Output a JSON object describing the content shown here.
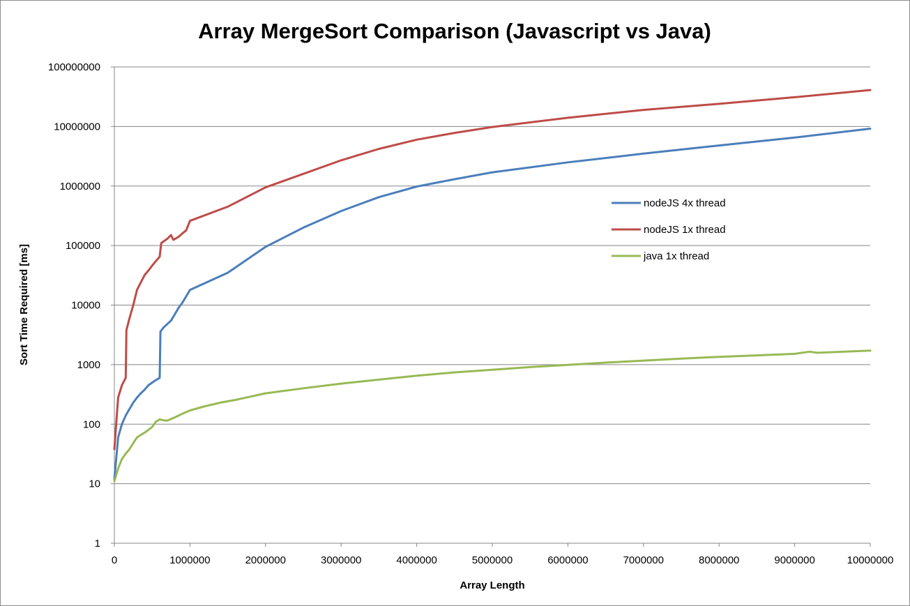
{
  "chart_data": {
    "type": "line",
    "title": "Array MergeSort Comparison (Javascript vs Java)",
    "xlabel": "Array Length",
    "ylabel": "Sort Time Required [ms]",
    "y_scale": "log",
    "xlim": [
      0,
      10000000
    ],
    "ylim": [
      1,
      100000000
    ],
    "grid": "horizontal",
    "legend_position": "right",
    "x_tick_labels": [
      "0",
      "1000000",
      "2000000",
      "3000000",
      "4000000",
      "5000000",
      "6000000",
      "7000000",
      "8000000",
      "9000000",
      "10000000"
    ],
    "y_tick_labels": [
      "1",
      "10",
      "100",
      "1000",
      "10000",
      "100000",
      "1000000",
      "10000000",
      "100000000"
    ],
    "series": [
      {
        "name": "nodeJS 4x thread",
        "color": "#4a7ebb",
        "x": [
          0,
          50000,
          100000,
          150000,
          200000,
          250000,
          300000,
          350000,
          400000,
          450000,
          500000,
          550000,
          600000,
          610000,
          650000,
          700000,
          750000,
          800000,
          850000,
          900000,
          950000,
          1000000,
          1500000,
          2000000,
          2500000,
          3000000,
          3500000,
          4000000,
          4500000,
          5000000,
          6000000,
          7000000,
          8000000,
          9000000,
          10000000
        ],
        "y": [
          12,
          60,
          100,
          140,
          180,
          230,
          280,
          330,
          380,
          450,
          500,
          550,
          600,
          3600,
          4200,
          4800,
          5500,
          7000,
          9000,
          11000,
          14000,
          18000,
          35000,
          95000,
          200000,
          380000,
          650000,
          980000,
          1300000,
          1700000,
          2500000,
          3500000,
          4800000,
          6500000,
          9200000
        ]
      },
      {
        "name": "nodeJS 1x thread",
        "color": "#be4b48",
        "x": [
          0,
          50000,
          100000,
          150000,
          160000,
          200000,
          250000,
          300000,
          350000,
          400000,
          450000,
          500000,
          550000,
          600000,
          620000,
          700000,
          750000,
          780000,
          850000,
          900000,
          950000,
          1000000,
          1500000,
          2000000,
          2500000,
          3000000,
          3500000,
          4000000,
          4500000,
          5000000,
          6000000,
          7000000,
          8000000,
          9000000,
          10000000
        ],
        "y": [
          38,
          280,
          450,
          600,
          3800,
          6000,
          10000,
          18000,
          24000,
          32000,
          38000,
          46000,
          55000,
          65000,
          110000,
          130000,
          150000,
          125000,
          140000,
          160000,
          180000,
          260000,
          450000,
          950000,
          1600000,
          2700000,
          4200000,
          6000000,
          7800000,
          9800000,
          14000000,
          19000000,
          24000000,
          31000000,
          41000000
        ]
      },
      {
        "name": "java 1x thread",
        "color": "#98b954",
        "x": [
          0,
          50000,
          100000,
          150000,
          200000,
          250000,
          300000,
          350000,
          400000,
          450000,
          500000,
          550000,
          600000,
          650000,
          700000,
          750000,
          800000,
          900000,
          1000000,
          1200000,
          1400000,
          1600000,
          1800000,
          2000000,
          2500000,
          3000000,
          3500000,
          4000000,
          4500000,
          5000000,
          5500000,
          6000000,
          6500000,
          7000000,
          7500000,
          8000000,
          8500000,
          9000000,
          9200000,
          9300000,
          9500000,
          10000000
        ],
        "y": [
          11,
          18,
          26,
          32,
          38,
          48,
          60,
          66,
          72,
          80,
          90,
          110,
          120,
          116,
          115,
          122,
          130,
          150,
          170,
          200,
          230,
          255,
          290,
          330,
          400,
          480,
          560,
          650,
          740,
          820,
          910,
          990,
          1080,
          1170,
          1260,
          1350,
          1430,
          1520,
          1650,
          1580,
          1620,
          1720
        ]
      }
    ]
  }
}
